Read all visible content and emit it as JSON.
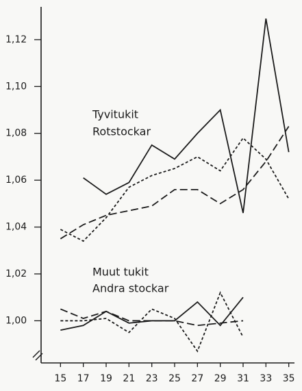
{
  "chart_data": {
    "type": "line",
    "annotations": [
      "Tyvitukit",
      "Rotstockar",
      "Muut tukit",
      "Andra stockar"
    ],
    "x": [
      15,
      17,
      19,
      21,
      23,
      25,
      27,
      29,
      31,
      33,
      35
    ],
    "xlim": [
      13.3,
      35.5
    ],
    "xticks": [
      15,
      17,
      19,
      21,
      23,
      25,
      27,
      29,
      31,
      33,
      35
    ],
    "ylim": [
      0.982,
      1.134
    ],
    "yticks": [
      {
        "value": 1.0,
        "label": "1,00"
      },
      {
        "value": 1.02,
        "label": "1,02"
      },
      {
        "value": 1.04,
        "label": "1,04"
      },
      {
        "value": 1.06,
        "label": "1,06"
      },
      {
        "value": 1.08,
        "label": "1,08"
      },
      {
        "value": 1.1,
        "label": "1,10"
      },
      {
        "value": 1.12,
        "label": "1,12"
      }
    ],
    "grid": false,
    "series": [
      {
        "color": "#1a1a1a",
        "dash": "solid",
        "values": [
          null,
          1.061,
          1.054,
          1.059,
          1.075,
          1.069,
          1.08,
          1.09,
          1.046,
          1.129,
          1.072
        ]
      },
      {
        "color": "#1a1a1a",
        "dash": "dashed",
        "values": [
          1.035,
          1.041,
          1.045,
          1.047,
          1.049,
          1.056,
          1.056,
          1.05,
          1.056,
          1.068,
          1.083
        ]
      },
      {
        "color": "#1a1a1a",
        "dash": "dotted",
        "values": [
          1.039,
          1.034,
          1.044,
          1.057,
          1.062,
          1.065,
          1.07,
          1.064,
          1.078,
          1.069,
          1.052
        ]
      },
      {
        "color": "#1a1a1a",
        "dash": "solid",
        "values": [
          0.996,
          0.998,
          1.004,
          0.999,
          1.0,
          1.0,
          1.008,
          0.998,
          1.01,
          null,
          null
        ]
      },
      {
        "color": "#1a1a1a",
        "dash": "dashed",
        "values": [
          1.005,
          1.001,
          1.004,
          1.0,
          1.0,
          1.0,
          0.998,
          0.999,
          1.0,
          null,
          null
        ]
      },
      {
        "color": "#1a1a1a",
        "dash": "dotted",
        "values": [
          1.0,
          1.0,
          1.001,
          0.995,
          1.005,
          1.001,
          0.987,
          1.012,
          0.993,
          null,
          null
        ]
      }
    ]
  }
}
